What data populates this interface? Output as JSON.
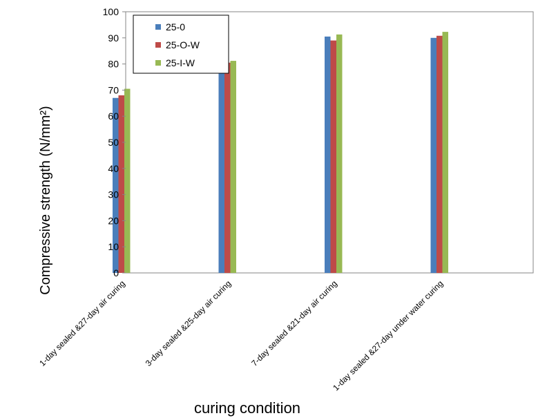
{
  "chart_data": {
    "type": "bar",
    "ylabel": "Compressive strength (N/mm²)",
    "xlabel": "curing condition",
    "ylim": [
      0,
      100
    ],
    "yticks": [
      0,
      10,
      20,
      30,
      40,
      50,
      60,
      70,
      80,
      90,
      100
    ],
    "grid": false,
    "legend_position": "top-left",
    "categories": [
      "1-day sealed &27-day air curing",
      "3-day sealed &25-day air curing",
      "7-day sealed &21-day air curing",
      "1-day sealed &27-day under water curing"
    ],
    "series": [
      {
        "name": "25-0",
        "color": "#4a7ebb",
        "values": [
          67,
          82,
          90.5,
          90
        ]
      },
      {
        "name": "25-O-W",
        "color": "#be4b48",
        "values": [
          68,
          80.5,
          89,
          90.8
        ]
      },
      {
        "name": "25-I-W",
        "color": "#98b954",
        "values": [
          70.5,
          81.2,
          91.3,
          92.3
        ]
      }
    ]
  }
}
